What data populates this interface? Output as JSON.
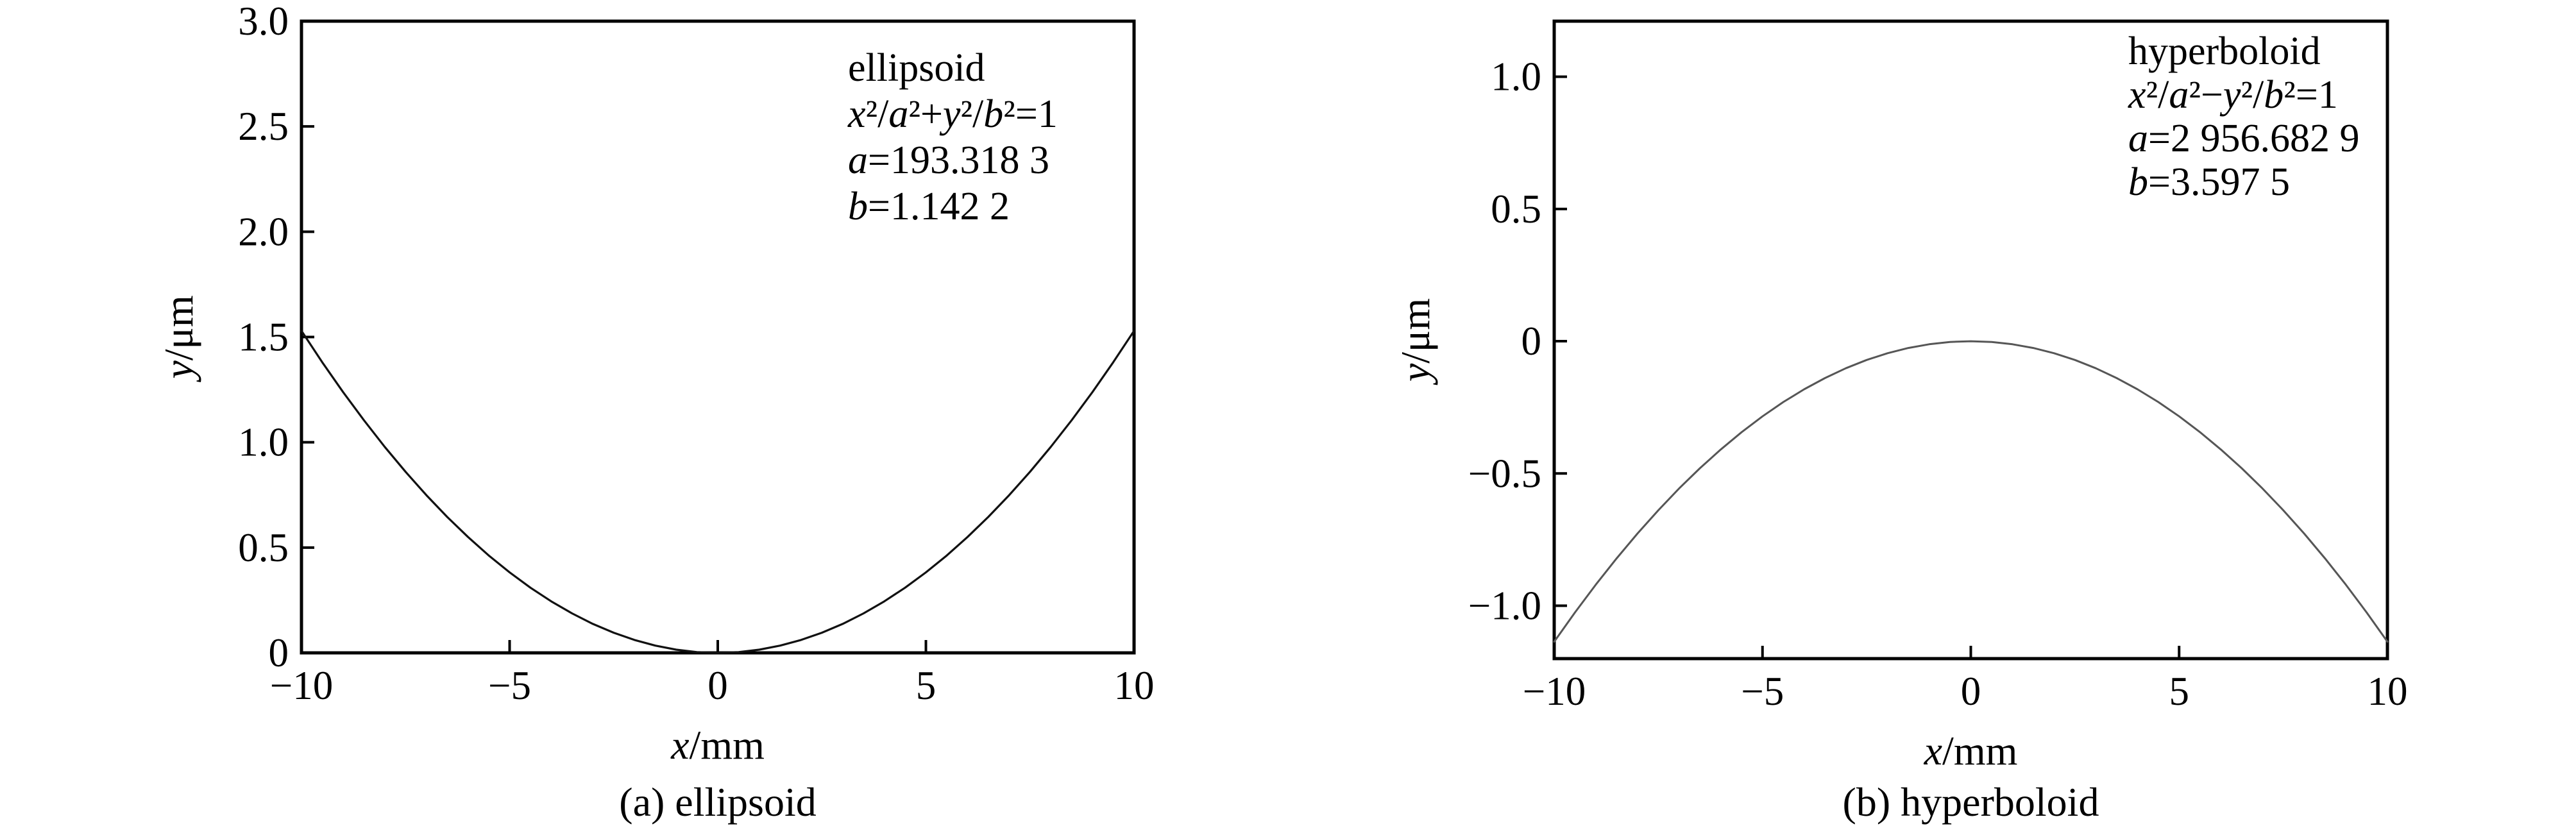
{
  "figure": {
    "background": "#ffffff",
    "text_color": "#000000",
    "frame_color": "#000000"
  },
  "chart_data": [
    {
      "id": "a",
      "type": "line",
      "title": "(a) ellipsoid",
      "xlabel": "*x*/mm",
      "ylabel": "*y*/μm",
      "xlim": [
        -10,
        10
      ],
      "ylim": [
        0,
        3.0
      ],
      "grid": false,
      "x_ticks": {
        "values": [
          -10,
          -5,
          0,
          5,
          10
        ],
        "labels": [
          "−10",
          "−5",
          "0",
          "5",
          "10"
        ]
      },
      "y_ticks": {
        "values": [
          0,
          0.5,
          1.0,
          1.5,
          2.0,
          2.5,
          3.0
        ],
        "labels": [
          "0",
          "0.5",
          "1.0",
          "1.5",
          "2.0",
          "2.5",
          "3.0"
        ]
      },
      "annotation_lines": [
        "ellipsoid",
        "*x*²/*a*²+*y*²/*b*²=1",
        "*a*=193.318 3",
        "*b*=1.142 2"
      ],
      "series": [
        {
          "name": "ellipsoid sag curve",
          "color": "#111111",
          "width": 3.2,
          "x": [
            -10,
            -9.5,
            -9,
            -8.5,
            -8,
            -7.5,
            -7,
            -6.5,
            -6,
            -5.5,
            -5,
            -4.5,
            -4,
            -3.5,
            -3,
            -2.5,
            -2,
            -1.5,
            -1,
            -0.5,
            0,
            0.5,
            1,
            1.5,
            2,
            2.5,
            3,
            3.5,
            4,
            4.5,
            5,
            5.5,
            6,
            6.5,
            7,
            7.5,
            8,
            8.5,
            9,
            9.5,
            10
          ],
          "y": [
            1.5292,
            1.38,
            1.2385,
            1.1046,
            0.9784,
            0.8599,
            0.749,
            0.6458,
            0.5503,
            0.4624,
            0.3821,
            0.3095,
            0.2445,
            0.1872,
            0.1375,
            0.0955,
            0.0611,
            0.0344,
            0.0153,
            0.0038,
            0,
            0.0038,
            0.0153,
            0.0344,
            0.0611,
            0.0955,
            0.1375,
            0.1872,
            0.2445,
            0.3095,
            0.3821,
            0.4624,
            0.5503,
            0.6458,
            0.749,
            0.8599,
            0.9784,
            1.1046,
            1.2385,
            1.38,
            1.5292
          ]
        }
      ]
    },
    {
      "id": "b",
      "type": "line",
      "title": "(b) hyperboloid",
      "xlabel": "*x*/mm",
      "ylabel": "*y*/μm",
      "xlim": [
        -10,
        10
      ],
      "ylim": [
        -1.2,
        1.21
      ],
      "grid": false,
      "x_ticks": {
        "values": [
          -10,
          -5,
          0,
          5,
          10
        ],
        "labels": [
          "−10",
          "−5",
          "0",
          "5",
          "10"
        ]
      },
      "y_ticks": {
        "values": [
          -1.0,
          -0.5,
          0,
          0.5,
          1.0
        ],
        "labels": [
          "−1.0",
          "−0.5",
          "0",
          "0.5",
          "1.0"
        ]
      },
      "annotation_lines": [
        "hyperboloid",
        "*x*²/*a*²−*y*²/*b*²=1",
        "*a*=2 956.682 9",
        "*b*=3.597 5"
      ],
      "series": [
        {
          "name": "hyperboloid sag curve",
          "color": "#565656",
          "width": 3.0,
          "x": [
            -10,
            -9.5,
            -9,
            -8.5,
            -8,
            -7.5,
            -7,
            -6.5,
            -6,
            -5.5,
            -5,
            -4.5,
            -4,
            -3.5,
            -3,
            -2.5,
            -2,
            -1.5,
            -1,
            -0.5,
            0,
            0.5,
            1,
            1.5,
            2,
            2.5,
            3,
            3.5,
            4,
            4.5,
            5,
            5.5,
            6,
            6.5,
            7,
            7.5,
            8,
            8.5,
            9,
            9.5,
            10
          ],
          "y": [
            -1.136,
            -1.0252,
            -0.9202,
            -0.8207,
            -0.727,
            -0.639,
            -0.5566,
            -0.48,
            -0.409,
            -0.3436,
            -0.284,
            -0.23,
            -0.1818,
            -0.1392,
            -0.1022,
            -0.071,
            -0.0454,
            -0.0256,
            -0.0114,
            -0.0028,
            0,
            -0.0028,
            -0.0114,
            -0.0256,
            -0.0454,
            -0.071,
            -0.1022,
            -0.1392,
            -0.1818,
            -0.23,
            -0.284,
            -0.3436,
            -0.409,
            -0.48,
            -0.5566,
            -0.639,
            -0.727,
            -0.8207,
            -0.9202,
            -1.0252,
            -1.136
          ]
        }
      ]
    }
  ]
}
